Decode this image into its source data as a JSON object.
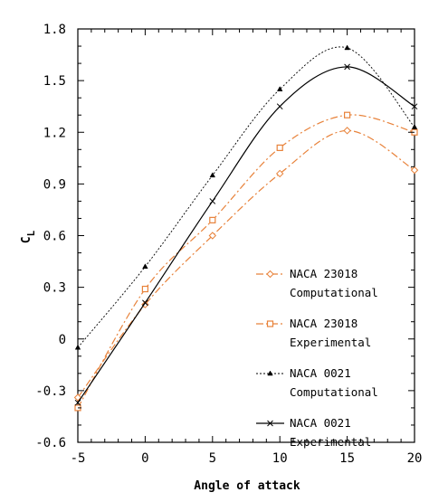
{
  "chart_data": {
    "type": "line",
    "xlabel": "Angle of attack",
    "ylabel": "C",
    "ylabel_subscript": "L",
    "xlim": [
      -5,
      20
    ],
    "ylim": [
      -0.6,
      1.8
    ],
    "xticks": [
      "-5",
      "0",
      "5",
      "10",
      "15",
      "20"
    ],
    "yticks": [
      "-0.6",
      "-0.3",
      "0",
      "0.3",
      "0.6",
      "0.9",
      "1.2",
      "1.5",
      "1.8"
    ],
    "grid": false,
    "legend_position": "lower-right",
    "series": [
      {
        "name_line1": "NACA 23018",
        "name_line2": "Computational",
        "color": "#e8823a",
        "line_style": "dash-dot",
        "marker": "diamond-open",
        "x": [
          -5,
          0,
          5,
          10,
          15,
          20
        ],
        "y": [
          -0.34,
          0.2,
          0.6,
          0.96,
          1.21,
          0.98
        ]
      },
      {
        "name_line1": "NACA 23018",
        "name_line2": "Experimental",
        "color": "#e8823a",
        "line_style": "dash-dot",
        "marker": "square-open",
        "x": [
          -5,
          0,
          5,
          10,
          15,
          20
        ],
        "y": [
          -0.4,
          0.29,
          0.69,
          1.11,
          1.3,
          1.2
        ]
      },
      {
        "name_line1": "NACA 0021",
        "name_line2": "Computational",
        "color": "#000000",
        "line_style": "dotted",
        "marker": "triangle",
        "x": [
          -5,
          0,
          5,
          10,
          15,
          20
        ],
        "y": [
          -0.05,
          0.42,
          0.95,
          1.45,
          1.69,
          1.23
        ]
      },
      {
        "name_line1": "NACA 0021",
        "name_line2": "Experimental",
        "color": "#000000",
        "line_style": "solid",
        "marker": "x",
        "x": [
          -5,
          0,
          5,
          10,
          15,
          20
        ],
        "y": [
          -0.37,
          0.21,
          0.8,
          1.35,
          1.58,
          1.35
        ]
      }
    ]
  }
}
